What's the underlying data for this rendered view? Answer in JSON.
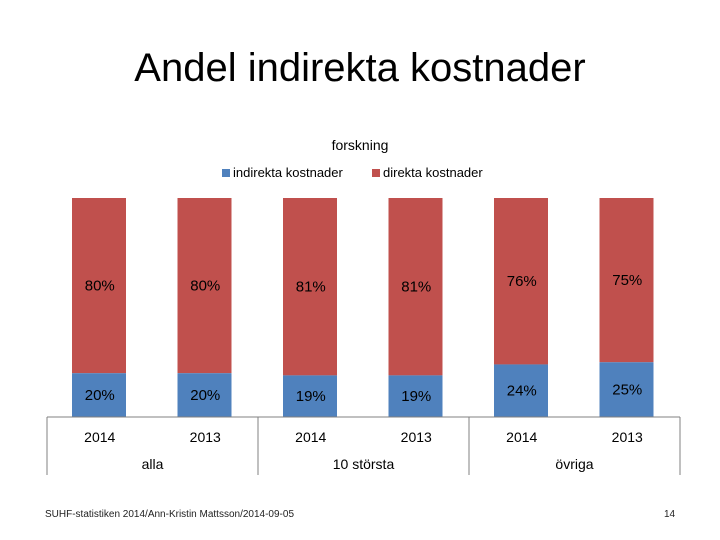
{
  "slide": {
    "title": "Andel indirekta kostnader",
    "footer": "SUHF-statistiken 2014/Ann-Kristin Mattsson/2014-09-05",
    "page_number": "14"
  },
  "colors": {
    "indirect": "#4f81bd",
    "direct": "#c0504d",
    "axis": "#808080"
  },
  "chart_data": {
    "type": "bar",
    "stacked": true,
    "percent": true,
    "title": "forskning",
    "categories": [
      {
        "year": "2014",
        "group": "alla"
      },
      {
        "year": "2013",
        "group": "alla"
      },
      {
        "year": "2014",
        "group": "10 största"
      },
      {
        "year": "2013",
        "group": "10 största"
      },
      {
        "year": "2014",
        "group": "övriga"
      },
      {
        "year": "2013",
        "group": "övriga"
      }
    ],
    "groups": [
      "alla",
      "10 största",
      "övriga"
    ],
    "series": [
      {
        "name": "indirekta kostnader",
        "values": [
          20,
          20,
          19,
          19,
          24,
          25
        ],
        "labels": [
          "20%",
          "20%",
          "19%",
          "19%",
          "24%",
          "25%"
        ]
      },
      {
        "name": "direkta kostnader",
        "values": [
          80,
          80,
          81,
          81,
          76,
          75
        ],
        "labels": [
          "80%",
          "80%",
          "81%",
          "81%",
          "76%",
          "75%"
        ]
      }
    ],
    "ylim": [
      0,
      100
    ],
    "legend": "top"
  }
}
